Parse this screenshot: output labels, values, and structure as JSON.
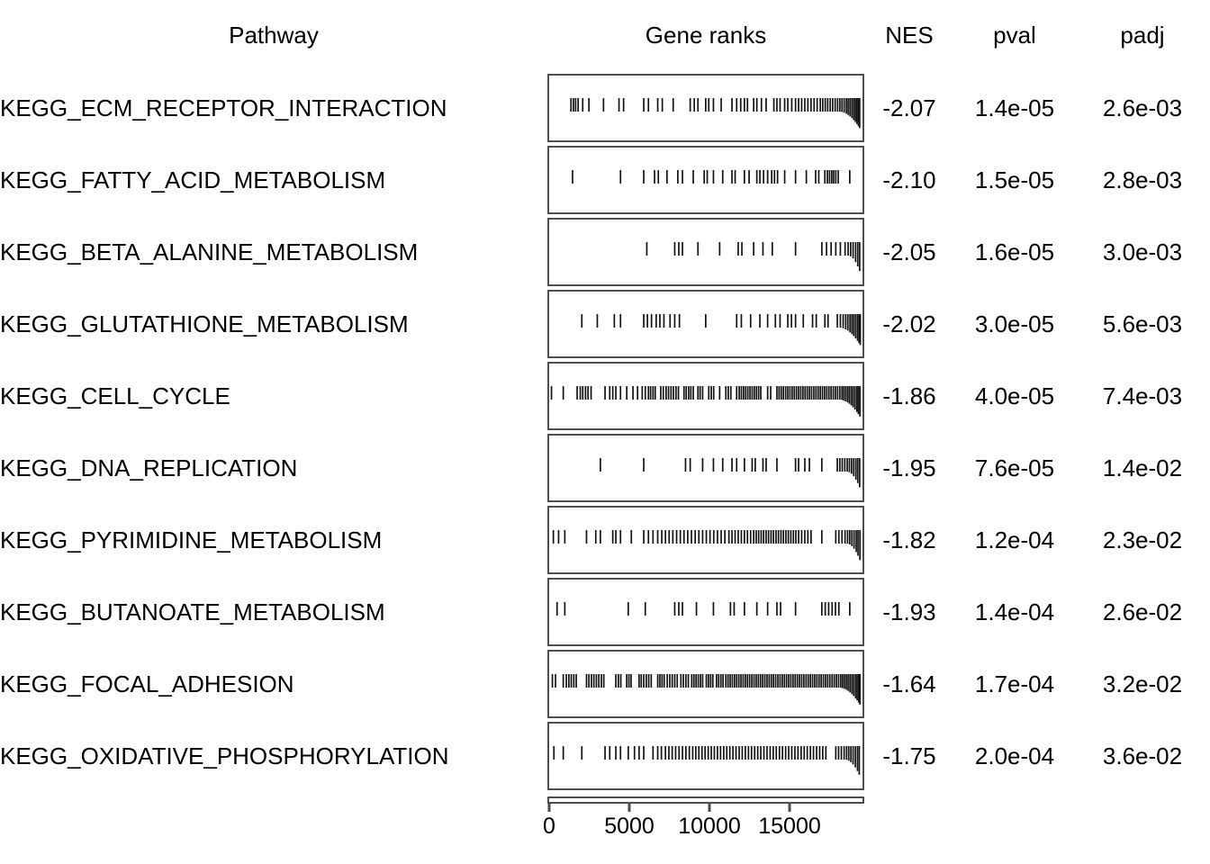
{
  "header": {
    "pathway": "Pathway",
    "gene_ranks": "Gene ranks",
    "nes": "NES",
    "pval": "pval",
    "padj": "padj"
  },
  "colors": {
    "text": "#000000",
    "panel_border": "#4d4d4d",
    "tick": "#141414",
    "axis": "#4d4d4d"
  },
  "chart_data": {
    "type": "table",
    "subtype": "gsea_rank_table",
    "columns": [
      "Pathway",
      "Gene ranks",
      "NES",
      "pval",
      "padj"
    ],
    "x_axis": {
      "ticks": [
        0,
        5000,
        10000,
        15000
      ],
      "max": 19550
    },
    "rows": [
      {
        "pathway": "KEGG_ECM_RECEPTOR_INTERACTION",
        "nes": "-2.07",
        "pval": "1.4e-05",
        "padj": "2.6e-03",
        "tail_start": 0.93,
        "ranks_frac": [
          0.065,
          0.073,
          0.08,
          0.088,
          0.103,
          0.123,
          0.17,
          0.22,
          0.235,
          0.3,
          0.315,
          0.345,
          0.36,
          0.395,
          0.45,
          0.463,
          0.475,
          0.5,
          0.51,
          0.525,
          0.55,
          0.585,
          0.6,
          0.613,
          0.625,
          0.635,
          0.655,
          0.665,
          0.68,
          0.695,
          0.72,
          0.73,
          0.74,
          0.755,
          0.765,
          0.778,
          0.79,
          0.8,
          0.81,
          0.82,
          0.83,
          0.84,
          0.85,
          0.86,
          0.87,
          0.878,
          0.886,
          0.894,
          0.902,
          0.91,
          0.918,
          0.926,
          0.933,
          0.94,
          0.947,
          0.954,
          0.96,
          0.966,
          0.972,
          0.978,
          0.983,
          0.988,
          0.993,
          0.997
        ]
      },
      {
        "pathway": "KEGG_FATTY_ACID_METABOLISM",
        "nes": "-2.10",
        "pval": "1.5e-05",
        "padj": "2.8e-03",
        "tail_start": null,
        "ranks_frac": [
          0.07,
          0.225,
          0.3,
          0.335,
          0.347,
          0.375,
          0.41,
          0.425,
          0.46,
          0.495,
          0.505,
          0.525,
          0.555,
          0.585,
          0.595,
          0.625,
          0.64,
          0.665,
          0.675,
          0.687,
          0.7,
          0.713,
          0.722,
          0.732,
          0.755,
          0.79,
          0.825,
          0.855,
          0.865,
          0.885,
          0.893,
          0.9,
          0.907,
          0.913,
          0.92,
          0.928,
          0.965
        ]
      },
      {
        "pathway": "KEGG_BETA_ALANINE_METABOLISM",
        "nes": "-2.05",
        "pval": "1.6e-05",
        "padj": "3.0e-03",
        "tail_start": 0.96,
        "ranks_frac": [
          0.31,
          0.4,
          0.413,
          0.425,
          0.475,
          0.545,
          0.605,
          0.617,
          0.655,
          0.685,
          0.715,
          0.79,
          0.875,
          0.89,
          0.905,
          0.92,
          0.935,
          0.95,
          0.96,
          0.968,
          0.976,
          0.984,
          0.991,
          0.997
        ]
      },
      {
        "pathway": "KEGG_GLUTATHIONE_METABOLISM",
        "nes": "-2.02",
        "pval": "3.0e-05",
        "padj": "5.6e-03",
        "tail_start": 0.93,
        "ranks_frac": [
          0.1,
          0.15,
          0.205,
          0.225,
          0.3,
          0.312,
          0.325,
          0.34,
          0.352,
          0.365,
          0.385,
          0.4,
          0.415,
          0.5,
          0.6,
          0.615,
          0.645,
          0.675,
          0.7,
          0.725,
          0.74,
          0.765,
          0.777,
          0.79,
          0.815,
          0.845,
          0.857,
          0.885,
          0.895,
          0.925,
          0.935,
          0.944,
          0.952,
          0.959,
          0.966,
          0.972,
          0.978,
          0.984,
          0.99,
          0.995,
          0.999
        ]
      },
      {
        "pathway": "KEGG_CELL_CYCLE",
        "nes": "-1.86",
        "pval": "4.0e-05",
        "padj": "7.4e-03",
        "tail_start": 0.93,
        "ranks_frac": [
          0.002,
          0.04,
          0.085,
          0.095,
          0.103,
          0.112,
          0.12,
          0.13,
          0.175,
          0.19,
          0.2,
          0.21,
          0.225,
          0.245,
          0.265,
          0.28,
          0.295,
          0.305,
          0.315,
          0.322,
          0.33,
          0.337,
          0.355,
          0.363,
          0.372,
          0.38,
          0.388,
          0.396,
          0.404,
          0.412,
          0.43,
          0.437,
          0.445,
          0.452,
          0.46,
          0.475,
          0.482,
          0.49,
          0.51,
          0.518,
          0.526,
          0.545,
          0.565,
          0.573,
          0.581,
          0.6,
          0.608,
          0.615,
          0.622,
          0.629,
          0.636,
          0.643,
          0.65,
          0.657,
          0.664,
          0.671,
          0.678,
          0.7,
          0.71,
          0.73,
          0.737,
          0.744,
          0.751,
          0.758,
          0.765,
          0.772,
          0.779,
          0.786,
          0.793,
          0.8,
          0.807,
          0.814,
          0.821,
          0.828,
          0.835,
          0.842,
          0.849,
          0.856,
          0.863,
          0.87,
          0.877,
          0.884,
          0.891,
          0.898,
          0.905,
          0.912,
          0.919,
          0.926,
          0.933,
          0.94,
          0.946,
          0.952,
          0.958,
          0.964,
          0.97,
          0.976,
          0.982,
          0.988,
          0.993,
          0.998
        ]
      },
      {
        "pathway": "KEGG_DNA_REPLICATION",
        "nes": "-1.95",
        "pval": "7.6e-05",
        "padj": "1.4e-02",
        "tail_start": 0.955,
        "ranks_frac": [
          0.16,
          0.3,
          0.435,
          0.45,
          0.49,
          0.525,
          0.555,
          0.585,
          0.6,
          0.625,
          0.65,
          0.66,
          0.685,
          0.695,
          0.73,
          0.79,
          0.8,
          0.82,
          0.835,
          0.875,
          0.925,
          0.933,
          0.941,
          0.949,
          0.957,
          0.964,
          0.971,
          0.978,
          0.985,
          0.991,
          0.997
        ]
      },
      {
        "pathway": "KEGG_PYRIMIDINE_METABOLISM",
        "nes": "-1.82",
        "pval": "1.2e-04",
        "padj": "2.3e-02",
        "tail_start": 0.955,
        "ranks_frac": [
          0.008,
          0.025,
          0.045,
          0.115,
          0.145,
          0.16,
          0.2,
          0.21,
          0.225,
          0.26,
          0.3,
          0.315,
          0.33,
          0.345,
          0.358,
          0.37,
          0.382,
          0.394,
          0.406,
          0.418,
          0.43,
          0.442,
          0.454,
          0.466,
          0.478,
          0.49,
          0.502,
          0.514,
          0.526,
          0.538,
          0.55,
          0.562,
          0.575,
          0.585,
          0.595,
          0.605,
          0.615,
          0.625,
          0.635,
          0.645,
          0.655,
          0.663,
          0.671,
          0.679,
          0.687,
          0.695,
          0.703,
          0.711,
          0.719,
          0.727,
          0.735,
          0.743,
          0.751,
          0.759,
          0.767,
          0.775,
          0.783,
          0.791,
          0.8,
          0.81,
          0.82,
          0.83,
          0.84,
          0.875,
          0.92,
          0.93,
          0.94,
          0.95,
          0.958,
          0.965,
          0.972,
          0.979,
          0.986,
          0.992,
          0.998
        ]
      },
      {
        "pathway": "KEGG_BUTANOATE_METABOLISM",
        "nes": "-1.93",
        "pval": "1.4e-04",
        "padj": "2.6e-02",
        "tail_start": null,
        "ranks_frac": [
          0.02,
          0.045,
          0.25,
          0.305,
          0.4,
          0.413,
          0.425,
          0.47,
          0.525,
          0.58,
          0.592,
          0.625,
          0.665,
          0.7,
          0.73,
          0.742,
          0.79,
          0.875,
          0.886,
          0.897,
          0.908,
          0.919,
          0.93,
          0.965
        ]
      },
      {
        "pathway": "KEGG_FOCAL_ADHESION",
        "nes": "-1.64",
        "pval": "1.7e-04",
        "padj": "3.2e-02",
        "tail_start": 0.93,
        "ranks_frac": [
          0.005,
          0.015,
          0.04,
          0.05,
          0.058,
          0.066,
          0.074,
          0.082,
          0.115,
          0.123,
          0.131,
          0.139,
          0.147,
          0.155,
          0.163,
          0.171,
          0.21,
          0.218,
          0.226,
          0.245,
          0.252,
          0.259,
          0.285,
          0.292,
          0.3,
          0.308,
          0.316,
          0.324,
          0.345,
          0.352,
          0.359,
          0.366,
          0.376,
          0.384,
          0.392,
          0.4,
          0.408,
          0.42,
          0.428,
          0.436,
          0.444,
          0.455,
          0.462,
          0.469,
          0.476,
          0.483,
          0.49,
          0.502,
          0.509,
          0.516,
          0.523,
          0.535,
          0.542,
          0.549,
          0.556,
          0.565,
          0.572,
          0.579,
          0.586,
          0.593,
          0.6,
          0.607,
          0.614,
          0.621,
          0.628,
          0.635,
          0.642,
          0.649,
          0.656,
          0.663,
          0.67,
          0.677,
          0.684,
          0.691,
          0.698,
          0.705,
          0.712,
          0.719,
          0.726,
          0.733,
          0.74,
          0.747,
          0.754,
          0.761,
          0.768,
          0.775,
          0.782,
          0.789,
          0.796,
          0.803,
          0.81,
          0.817,
          0.824,
          0.831,
          0.838,
          0.845,
          0.852,
          0.859,
          0.866,
          0.873,
          0.88,
          0.887,
          0.894,
          0.901,
          0.908,
          0.915,
          0.922,
          0.929,
          0.936,
          0.942,
          0.948,
          0.954,
          0.96,
          0.966,
          0.972,
          0.978,
          0.984,
          0.989,
          0.994,
          0.998
        ]
      },
      {
        "pathway": "KEGG_OXIDATIVE_PHOSPHORYLATION",
        "nes": "-1.75",
        "pval": "2.0e-04",
        "padj": "3.6e-02",
        "tail_start": 0.95,
        "ranks_frac": [
          0.01,
          0.04,
          0.1,
          0.175,
          0.19,
          0.21,
          0.225,
          0.25,
          0.27,
          0.285,
          0.3,
          0.33,
          0.345,
          0.357,
          0.37,
          0.381,
          0.392,
          0.403,
          0.414,
          0.425,
          0.436,
          0.447,
          0.458,
          0.468,
          0.478,
          0.488,
          0.498,
          0.508,
          0.518,
          0.528,
          0.538,
          0.548,
          0.558,
          0.568,
          0.578,
          0.588,
          0.598,
          0.608,
          0.618,
          0.628,
          0.638,
          0.648,
          0.658,
          0.668,
          0.678,
          0.688,
          0.698,
          0.708,
          0.718,
          0.728,
          0.738,
          0.748,
          0.758,
          0.768,
          0.778,
          0.788,
          0.798,
          0.808,
          0.818,
          0.828,
          0.838,
          0.848,
          0.858,
          0.868,
          0.878,
          0.888,
          0.92,
          0.929,
          0.938,
          0.947,
          0.955,
          0.962,
          0.969,
          0.976,
          0.983,
          0.99,
          0.996
        ]
      }
    ]
  }
}
